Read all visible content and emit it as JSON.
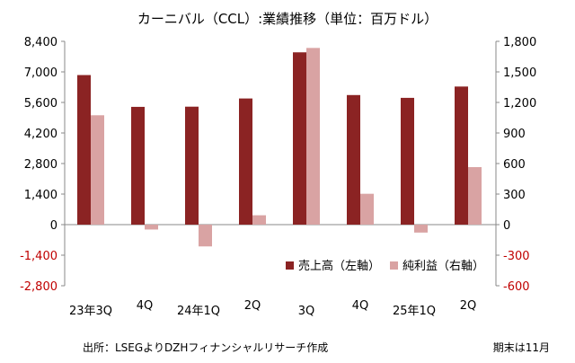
{
  "chart_data": {
    "type": "bar",
    "title": "カーニバル（CCL）:業績推移（単位：百万ドル）",
    "categories": [
      "23年3Q",
      "4Q",
      "24年1Q",
      "2Q",
      "3Q",
      "4Q",
      "25年1Q",
      "2Q"
    ],
    "series": [
      {
        "name": "売上高（左軸）",
        "axis": "left",
        "color": "#8b2323",
        "values": [
          6854,
          5397,
          5406,
          5781,
          7896,
          5938,
          5810,
          6328
        ]
      },
      {
        "name": "純利益（右軸）",
        "axis": "right",
        "color": "#d9a3a3",
        "values": [
          1074,
          -48,
          -214,
          92,
          1735,
          303,
          -78,
          565
        ]
      }
    ],
    "y_left": {
      "ylim": [
        -2800,
        8400
      ],
      "tick_labels": [
        "8,400",
        "7,000",
        "5,600",
        "4,200",
        "2,800",
        "1,400",
        "0",
        "-1,400",
        "-2,800"
      ]
    },
    "y_right": {
      "ylim": [
        -600,
        1800
      ],
      "tick_labels": [
        "1,800",
        "1,500",
        "1,200",
        "900",
        "600",
        "300",
        "0",
        "-300",
        "-600"
      ]
    },
    "legend_position": "bottom-right",
    "grid": false
  },
  "footer": {
    "source": "出所：LSEGよりDZHフィナンシャルリサーチ作成",
    "note": "期末は11月"
  },
  "colors": {
    "axis": "#888888",
    "negative_tick": "#c00000"
  }
}
